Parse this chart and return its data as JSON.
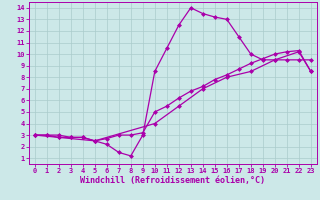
{
  "bg_color": "#cce8e8",
  "line_color": "#aa00aa",
  "grid_color": "#aacccc",
  "xlabel": "Windchill (Refroidissement éolien,°C)",
  "xlim": [
    -0.5,
    23.5
  ],
  "ylim": [
    0.5,
    14.5
  ],
  "xticks": [
    0,
    1,
    2,
    3,
    4,
    5,
    6,
    7,
    8,
    9,
    10,
    11,
    12,
    13,
    14,
    15,
    16,
    17,
    18,
    19,
    20,
    21,
    22,
    23
  ],
  "yticks": [
    1,
    2,
    3,
    4,
    5,
    6,
    7,
    8,
    9,
    10,
    11,
    12,
    13,
    14
  ],
  "line1_x": [
    0,
    1,
    2,
    3,
    4,
    5,
    6,
    7,
    8,
    9,
    10,
    11,
    12,
    13,
    14,
    15,
    16,
    17,
    18,
    19,
    20,
    21,
    22,
    23
  ],
  "line1_y": [
    3,
    3,
    3,
    2.8,
    2.8,
    2.5,
    2.2,
    1.5,
    1.2,
    3.0,
    8.5,
    10.5,
    12.5,
    14.0,
    13.5,
    13.2,
    13.0,
    11.5,
    10.0,
    9.5,
    9.5,
    9.5,
    9.5,
    9.5
  ],
  "line2_x": [
    0,
    1,
    2,
    3,
    4,
    5,
    6,
    7,
    8,
    9,
    10,
    11,
    12,
    13,
    14,
    15,
    16,
    17,
    18,
    19,
    20,
    21,
    22,
    23
  ],
  "line2_y": [
    3,
    3,
    2.8,
    2.8,
    2.8,
    2.5,
    2.7,
    3.0,
    3.0,
    3.2,
    5.0,
    5.5,
    6.2,
    6.8,
    7.2,
    7.8,
    8.2,
    8.7,
    9.2,
    9.6,
    10.0,
    10.2,
    10.3,
    8.5
  ],
  "line3_x": [
    0,
    2,
    5,
    10,
    12,
    14,
    16,
    18,
    20,
    22,
    23
  ],
  "line3_y": [
    3,
    2.8,
    2.5,
    4.0,
    5.5,
    7.0,
    8.0,
    8.5,
    9.5,
    10.2,
    8.5
  ],
  "marker_size": 2.5,
  "line_width": 0.9,
  "tick_fontsize": 5.0,
  "label_fontsize": 6.0
}
